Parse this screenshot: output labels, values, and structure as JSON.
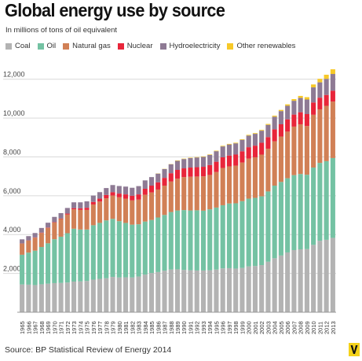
{
  "chart_data": {
    "type": "stacked-bar",
    "title": "Global energy use by source",
    "subtitle": "In millions of tons of oil equivalent",
    "source": "Source: BP Statistical Review of Energy 2014",
    "categories": [
      "1965",
      "1966",
      "1967",
      "1968",
      "1969",
      "1970",
      "1971",
      "1972",
      "1973",
      "1974",
      "1975",
      "1976",
      "1977",
      "1978",
      "1979",
      "1980",
      "1981",
      "1982",
      "1983",
      "1984",
      "1985",
      "1986",
      "1987",
      "1988",
      "1989",
      "1990",
      "1991",
      "1992",
      "1993",
      "1994",
      "1995",
      "1996",
      "1997",
      "1998",
      "1999",
      "2000",
      "2001",
      "2002",
      "2003",
      "2004",
      "2005",
      "2006",
      "2007",
      "2008",
      "2009",
      "2010",
      "2011",
      "2012",
      "2013"
    ],
    "ylim": [
      0,
      13000
    ],
    "yticks": [
      2000,
      4000,
      6000,
      8000,
      10000,
      12000
    ],
    "ytick_labels": [
      "2,000",
      "4,000",
      "6,000",
      "8,000",
      "10,000",
      "12,000"
    ],
    "grid": true,
    "legend_position": "top-left",
    "series": [
      {
        "name": "Coal",
        "color": "#b3b3b3",
        "values": [
          1430,
          1420,
          1400,
          1440,
          1470,
          1500,
          1510,
          1530,
          1580,
          1590,
          1610,
          1680,
          1720,
          1750,
          1820,
          1790,
          1800,
          1790,
          1840,
          1940,
          2020,
          2070,
          2140,
          2200,
          2210,
          2180,
          2160,
          2150,
          2150,
          2160,
          2200,
          2260,
          2270,
          2250,
          2280,
          2360,
          2380,
          2430,
          2600,
          2780,
          2920,
          3080,
          3200,
          3240,
          3250,
          3470,
          3680,
          3730,
          3830
        ]
      },
      {
        "name": "Oil",
        "color": "#74c2a3",
        "values": [
          1530,
          1650,
          1770,
          1920,
          2080,
          2260,
          2380,
          2540,
          2720,
          2670,
          2650,
          2800,
          2880,
          2980,
          2990,
          2900,
          2800,
          2720,
          2690,
          2730,
          2730,
          2810,
          2870,
          2960,
          3030,
          3080,
          3080,
          3100,
          3080,
          3140,
          3190,
          3250,
          3330,
          3360,
          3440,
          3490,
          3510,
          3540,
          3620,
          3740,
          3790,
          3820,
          3860,
          3880,
          3830,
          3980,
          4010,
          4050,
          4110
        ]
      },
      {
        "name": "Natural gas",
        "color": "#d18056",
        "values": [
          580,
          620,
          670,
          720,
          790,
          860,
          910,
          960,
          1000,
          1010,
          1010,
          1070,
          1100,
          1140,
          1200,
          1230,
          1250,
          1250,
          1270,
          1380,
          1420,
          1440,
          1510,
          1570,
          1640,
          1700,
          1740,
          1740,
          1770,
          1770,
          1830,
          1920,
          1910,
          1940,
          1990,
          2060,
          2090,
          2150,
          2200,
          2280,
          2340,
          2400,
          2500,
          2560,
          2510,
          2720,
          2760,
          2850,
          2910
        ]
      },
      {
        "name": "Nuclear",
        "color": "#e8253a",
        "values": [
          5,
          10,
          15,
          20,
          20,
          20,
          30,
          50,
          60,
          80,
          110,
          130,
          150,
          170,
          170,
          190,
          220,
          240,
          270,
          310,
          350,
          370,
          400,
          430,
          450,
          450,
          470,
          480,
          490,
          510,
          530,
          550,
          560,
          570,
          580,
          590,
          600,
          610,
          600,
          620,
          630,
          635,
          620,
          620,
          615,
          630,
          600,
          560,
          560
        ]
      },
      {
        "name": "Hydroelectricity",
        "color": "#8e7a94",
        "values": [
          210,
          220,
          225,
          240,
          250,
          270,
          275,
          290,
          300,
          310,
          330,
          330,
          335,
          355,
          370,
          390,
          400,
          410,
          425,
          430,
          440,
          450,
          455,
          460,
          465,
          480,
          490,
          500,
          510,
          520,
          545,
          560,
          570,
          580,
          590,
          600,
          610,
          620,
          630,
          650,
          680,
          700,
          710,
          740,
          750,
          780,
          790,
          830,
          860
        ]
      },
      {
        "name": "Other renewables",
        "color": "#f7c928",
        "values": [
          0,
          0,
          0,
          0,
          0,
          0,
          0,
          0,
          0,
          0,
          0,
          0,
          0,
          0,
          0,
          0,
          0,
          0,
          0,
          0,
          0,
          10,
          10,
          10,
          20,
          20,
          20,
          20,
          25,
          25,
          25,
          30,
          30,
          30,
          30,
          35,
          35,
          40,
          45,
          50,
          60,
          70,
          85,
          100,
          120,
          150,
          180,
          210,
          240
        ]
      }
    ]
  }
}
